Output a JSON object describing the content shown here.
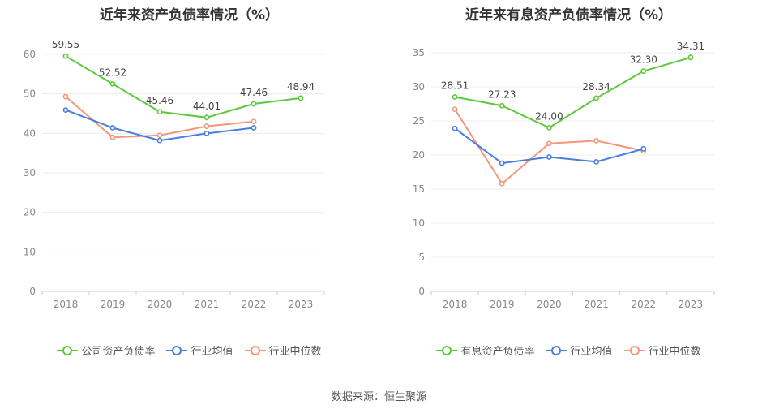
{
  "source_label": "数据来源：恒生聚源",
  "chart_data": [
    {
      "type": "line",
      "title": "近年来资产负债率情况（%）",
      "categories": [
        "2018",
        "2019",
        "2020",
        "2021",
        "2022",
        "2023"
      ],
      "ylim": [
        0,
        60
      ],
      "yticks": [
        0,
        10,
        20,
        30,
        40,
        50,
        60
      ],
      "grid": true,
      "legend_position": "bottom",
      "series": [
        {
          "name": "公司资产负债率",
          "color": "#5cc93a",
          "values": [
            59.55,
            52.52,
            45.46,
            44.01,
            47.46,
            48.94
          ],
          "labels": [
            "59.55",
            "52.52",
            "45.46",
            "44.01",
            "47.46",
            "48.94"
          ]
        },
        {
          "name": "行业均值",
          "color": "#4a7de0",
          "values": [
            45.9,
            41.4,
            38.2,
            40.0,
            41.4,
            null
          ]
        },
        {
          "name": "行业中位数",
          "color": "#f5967a",
          "values": [
            49.3,
            39.0,
            39.5,
            41.8,
            43.0,
            null
          ]
        }
      ]
    },
    {
      "type": "line",
      "title": "近年来有息资产负债率情况（%）",
      "categories": [
        "2018",
        "2019",
        "2020",
        "2021",
        "2022",
        "2023"
      ],
      "ylim": [
        0,
        35
      ],
      "yticks": [
        0,
        5,
        10,
        15,
        20,
        25,
        30,
        35
      ],
      "grid": true,
      "legend_position": "bottom",
      "series": [
        {
          "name": "有息资产负债率",
          "color": "#5cc93a",
          "values": [
            28.51,
            27.23,
            24.0,
            28.34,
            32.3,
            34.31
          ],
          "labels": [
            "28.51",
            "27.23",
            "24.00",
            "28.34",
            "32.30",
            "34.31"
          ]
        },
        {
          "name": "行业均值",
          "color": "#4a7de0",
          "values": [
            23.9,
            18.8,
            19.7,
            19.0,
            20.9,
            null
          ]
        },
        {
          "name": "行业中位数",
          "color": "#f5967a",
          "values": [
            26.7,
            15.8,
            21.7,
            22.1,
            20.6,
            null
          ]
        }
      ]
    }
  ]
}
